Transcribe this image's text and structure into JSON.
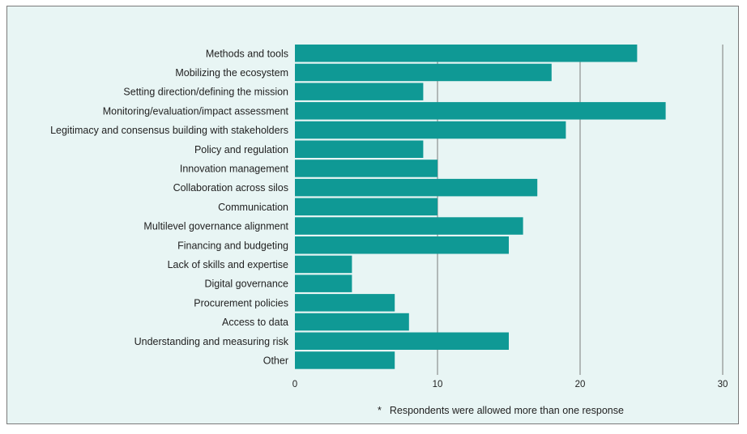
{
  "chart_data": {
    "type": "bar",
    "orientation": "horizontal",
    "categories": [
      "Methods and tools",
      "Mobilizing the ecosystem",
      "Setting direction/defining the mission",
      "Monitoring/evaluation/impact assessment",
      "Legitimacy and consensus building with stakeholders",
      "Policy and regulation",
      "Innovation management",
      "Collaboration across silos",
      "Communication",
      "Multilevel governance alignment",
      "Financing and budgeting",
      "Lack of skills and expertise",
      "Digital governance",
      "Procurement policies",
      "Access to data",
      "Understanding and measuring risk",
      "Other"
    ],
    "values": [
      24,
      18,
      9,
      26,
      19,
      9,
      10,
      17,
      10,
      16,
      15,
      4,
      4,
      7,
      8,
      15,
      7
    ],
    "xlim": [
      0,
      30
    ],
    "xticks": [
      0,
      10,
      20,
      30
    ],
    "grid": "vertical",
    "bar_color": "#0f9995"
  },
  "footnote": {
    "star": "*",
    "text": "Respondents were allowed more than one response"
  },
  "colors": {
    "panel_background": "#e8f5f4",
    "grid": "#7a7a7a",
    "bar": "#0f9995"
  }
}
